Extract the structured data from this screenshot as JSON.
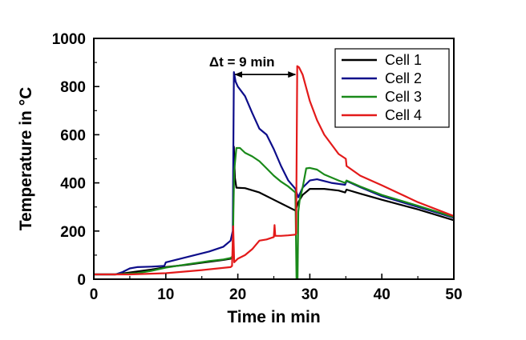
{
  "chart_data": {
    "type": "line",
    "title": "",
    "xlabel": "Time in min",
    "ylabel": "Temperature in °C",
    "xlim": [
      0,
      50
    ],
    "ylim": [
      0,
      1000
    ],
    "x_ticks": [
      0,
      10,
      20,
      30,
      40,
      50
    ],
    "y_ticks": [
      0,
      200,
      400,
      600,
      800,
      1000
    ],
    "x_tick_labels": [
      "0",
      "10",
      "20",
      "30",
      "40",
      "50"
    ],
    "y_tick_labels": [
      "0",
      "200",
      "400",
      "600",
      "800",
      "1000"
    ],
    "grid": false,
    "legend_position": "top-right",
    "annotation": {
      "text": "Δt = 9 min",
      "from_x": 19.4,
      "to_x": 28.2,
      "y": 850
    },
    "series": [
      {
        "name": "Cell 1",
        "color": "#000000",
        "points": [
          [
            0,
            20
          ],
          [
            3,
            20
          ],
          [
            5,
            28
          ],
          [
            8,
            40
          ],
          [
            10,
            50
          ],
          [
            13,
            60
          ],
          [
            16,
            72
          ],
          [
            18,
            80
          ],
          [
            19,
            85
          ],
          [
            19.3,
            90
          ],
          [
            19.45,
            550
          ],
          [
            19.6,
            420
          ],
          [
            19.8,
            380
          ],
          [
            21,
            378
          ],
          [
            23,
            360
          ],
          [
            25,
            330
          ],
          [
            28,
            285
          ],
          [
            28.4,
            320
          ],
          [
            29,
            350
          ],
          [
            30,
            375
          ],
          [
            32,
            375
          ],
          [
            34,
            368
          ],
          [
            34.9,
            360
          ],
          [
            35.1,
            372
          ],
          [
            37,
            355
          ],
          [
            40,
            330
          ],
          [
            45,
            290
          ],
          [
            50,
            245
          ]
        ]
      },
      {
        "name": "Cell 2",
        "color": "#0d0d8a",
        "points": [
          [
            0,
            20
          ],
          [
            3,
            20
          ],
          [
            4,
            30
          ],
          [
            5,
            45
          ],
          [
            6,
            50
          ],
          [
            8,
            52
          ],
          [
            9.8,
            55
          ],
          [
            10,
            70
          ],
          [
            12,
            85
          ],
          [
            14,
            100
          ],
          [
            16,
            115
          ],
          [
            18,
            135
          ],
          [
            19,
            160
          ],
          [
            19.3,
            200
          ],
          [
            19.45,
            860
          ],
          [
            19.7,
            820
          ],
          [
            20,
            800
          ],
          [
            21,
            760
          ],
          [
            22,
            690
          ],
          [
            23,
            625
          ],
          [
            24,
            600
          ],
          [
            25,
            540
          ],
          [
            26,
            470
          ],
          [
            27,
            410
          ],
          [
            28,
            375
          ],
          [
            28.4,
            340
          ],
          [
            29,
            380
          ],
          [
            30,
            410
          ],
          [
            31,
            415
          ],
          [
            33,
            400
          ],
          [
            34.9,
            392
          ],
          [
            35.1,
            408
          ],
          [
            37,
            382
          ],
          [
            40,
            345
          ],
          [
            45,
            300
          ],
          [
            50,
            255
          ]
        ]
      },
      {
        "name": "Cell 3",
        "color": "#1a8a1a",
        "points": [
          [
            0,
            20
          ],
          [
            3,
            20
          ],
          [
            6,
            25
          ],
          [
            8,
            35
          ],
          [
            10,
            48
          ],
          [
            13,
            62
          ],
          [
            16,
            75
          ],
          [
            18,
            82
          ],
          [
            19,
            88
          ],
          [
            19.3,
            95
          ],
          [
            19.4,
            300
          ],
          [
            19.5,
            450
          ],
          [
            19.8,
            545
          ],
          [
            20.3,
            545
          ],
          [
            21,
            525
          ],
          [
            22,
            510
          ],
          [
            23,
            490
          ],
          [
            24,
            460
          ],
          [
            25,
            430
          ],
          [
            26,
            405
          ],
          [
            27,
            385
          ],
          [
            28,
            360
          ],
          [
            28.15,
            0
          ],
          [
            28.3,
            0
          ],
          [
            28.4,
            280
          ],
          [
            28.6,
            330
          ],
          [
            29,
            380
          ],
          [
            29.5,
            460
          ],
          [
            30,
            462
          ],
          [
            31,
            455
          ],
          [
            32,
            435
          ],
          [
            34,
            410
          ],
          [
            34.9,
            400
          ],
          [
            35.1,
            410
          ],
          [
            37,
            385
          ],
          [
            40,
            350
          ],
          [
            45,
            305
          ],
          [
            50,
            258
          ]
        ]
      },
      {
        "name": "Cell 4",
        "color": "#e31a1a",
        "points": [
          [
            0,
            20
          ],
          [
            5,
            20
          ],
          [
            10,
            25
          ],
          [
            15,
            38
          ],
          [
            19,
            50
          ],
          [
            19.2,
            55
          ],
          [
            19.35,
            220
          ],
          [
            19.5,
            70
          ],
          [
            20,
            85
          ],
          [
            21,
            100
          ],
          [
            22,
            125
          ],
          [
            23,
            160
          ],
          [
            24,
            165
          ],
          [
            25,
            175
          ],
          [
            25.1,
            225
          ],
          [
            25.2,
            180
          ],
          [
            26,
            180
          ],
          [
            27,
            182
          ],
          [
            28,
            185
          ],
          [
            28.1,
            190
          ],
          [
            28.25,
            885
          ],
          [
            28.5,
            880
          ],
          [
            29,
            850
          ],
          [
            30,
            740
          ],
          [
            31,
            660
          ],
          [
            32,
            600
          ],
          [
            33,
            560
          ],
          [
            34,
            520
          ],
          [
            35,
            500
          ],
          [
            35.1,
            470
          ],
          [
            37,
            430
          ],
          [
            40,
            390
          ],
          [
            45,
            320
          ],
          [
            50,
            262
          ]
        ]
      }
    ]
  }
}
